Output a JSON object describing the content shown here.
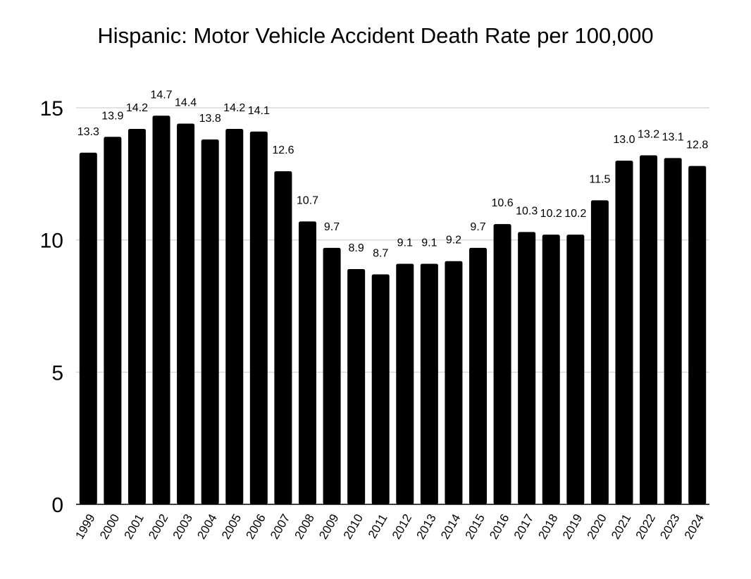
{
  "chart_data": {
    "type": "bar",
    "title": "Hispanic: Motor Vehicle Accident Death Rate per 100,000",
    "xlabel": "",
    "ylabel": "",
    "categories": [
      "1999",
      "2000",
      "2001",
      "2002",
      "2003",
      "2004",
      "2005",
      "2006",
      "2007",
      "2008",
      "2009",
      "2010",
      "2011",
      "2012",
      "2013",
      "2014",
      "2015",
      "2016",
      "2017",
      "2018",
      "2019",
      "2020",
      "2021",
      "2022",
      "2023",
      "2024"
    ],
    "values": [
      13.3,
      13.9,
      14.2,
      14.7,
      14.4,
      13.8,
      14.2,
      14.1,
      12.6,
      10.7,
      9.7,
      8.9,
      8.7,
      9.1,
      9.1,
      9.2,
      9.7,
      10.6,
      10.3,
      10.2,
      10.2,
      11.5,
      13.0,
      13.2,
      13.1,
      12.8
    ],
    "data_labels": [
      "13.3",
      "13.9",
      "14.2",
      "14.7",
      "14.4",
      "13.8",
      "14.2",
      "14.1",
      "12.6",
      "10.7",
      "9.7",
      "8.9",
      "8.7",
      "9.1",
      "9.1",
      "9.2",
      "9.7",
      "10.6",
      "10.3",
      "10.2",
      "10.2",
      "11.5",
      "13.0",
      "13.2",
      "13.1",
      "12.8"
    ],
    "yticks": [
      0,
      5,
      10,
      15
    ],
    "ylim": [
      0,
      15
    ],
    "grid": true,
    "bar_color": "#000000",
    "grid_color": "#d9d9d9"
  }
}
